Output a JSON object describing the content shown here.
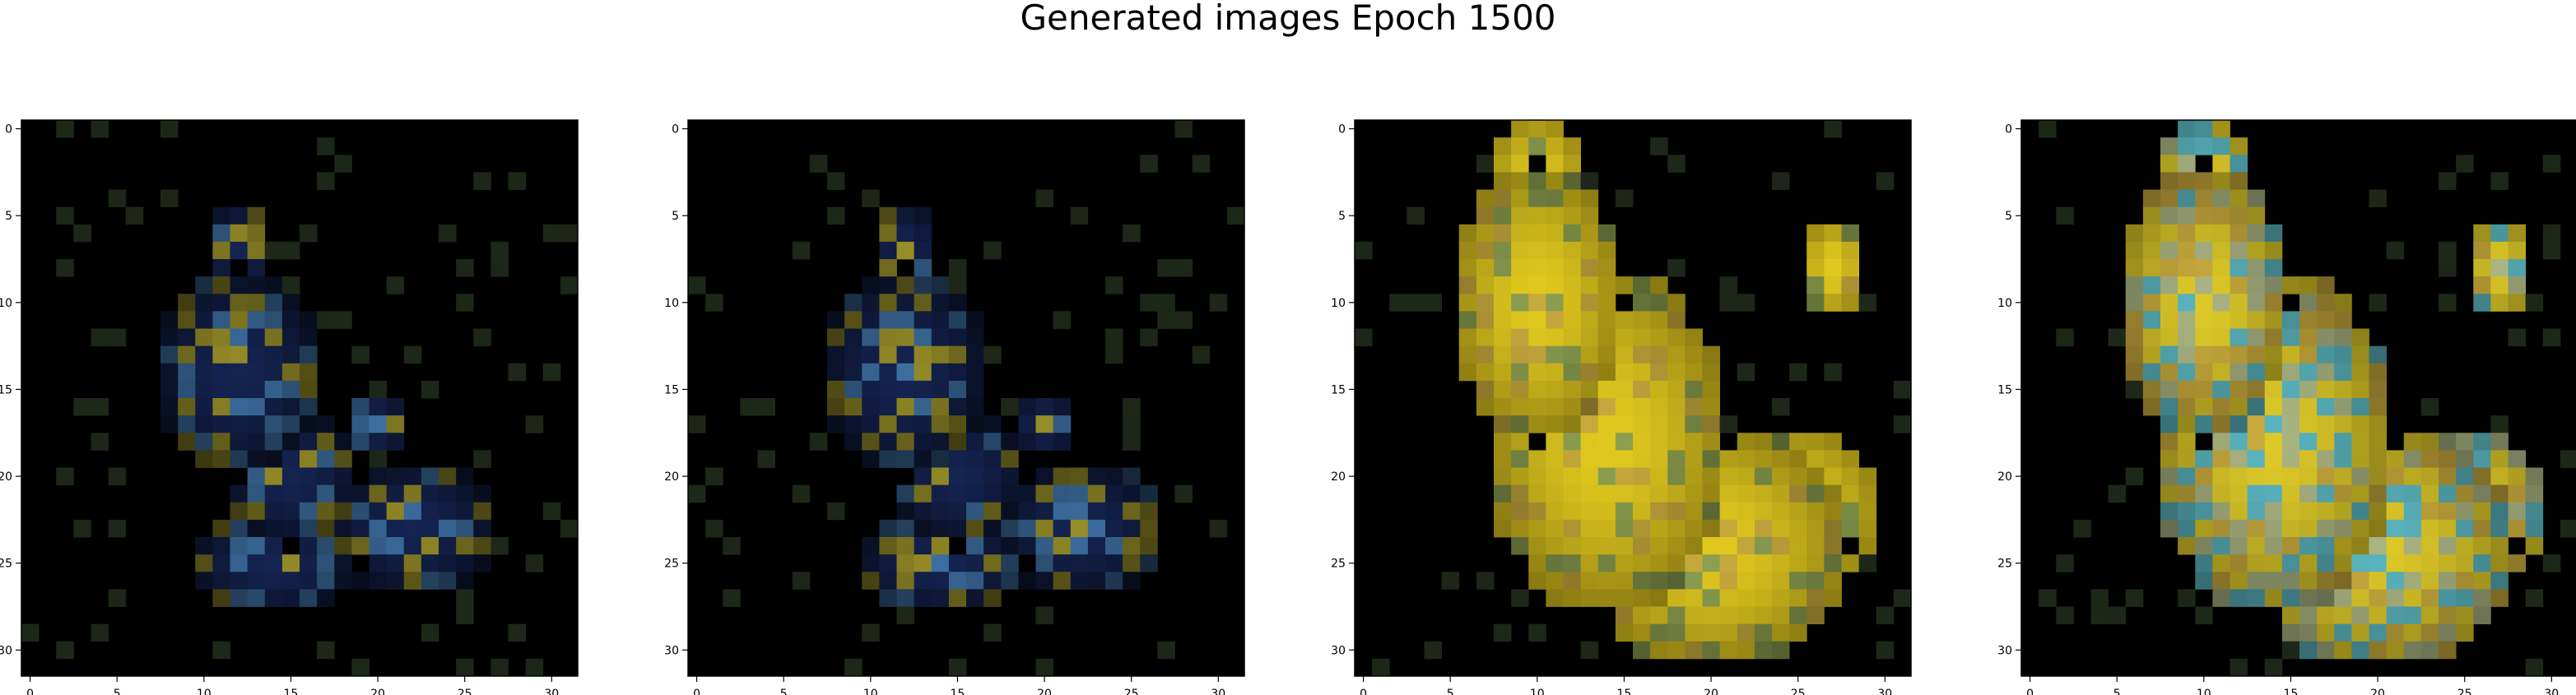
{
  "figure": {
    "title": "Generated images Epoch 1500",
    "panels": [
      {
        "id": "image-1",
        "palette": "blue",
        "xticks": [
          "0",
          "5",
          "10",
          "15",
          "20",
          "25",
          "30"
        ],
        "yticks": [
          "0",
          "5",
          "10",
          "15",
          "20",
          "25",
          "30"
        ]
      },
      {
        "id": "image-2",
        "palette": "blue",
        "xticks": [
          "0",
          "5",
          "10",
          "15",
          "20",
          "25",
          "30"
        ],
        "yticks": [
          "0",
          "5",
          "10",
          "15",
          "20",
          "25",
          "30"
        ]
      },
      {
        "id": "image-3",
        "palette": "yellow",
        "xticks": [
          "0",
          "5",
          "10",
          "15",
          "20",
          "25",
          "30"
        ],
        "yticks": [
          "0",
          "5",
          "10",
          "15",
          "20",
          "25",
          "30"
        ]
      },
      {
        "id": "image-4",
        "palette": "mixed",
        "xticks": [
          "0",
          "5",
          "10",
          "15",
          "20",
          "25",
          "30"
        ],
        "yticks": [
          "0",
          "5",
          "10",
          "15",
          "20",
          "25",
          "30"
        ]
      }
    ],
    "background_color": "#000000",
    "grid_size": 32
  }
}
